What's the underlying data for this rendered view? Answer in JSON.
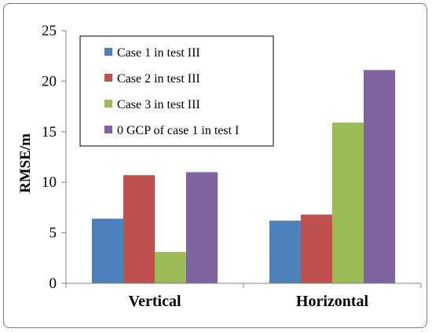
{
  "chart_data": {
    "type": "bar",
    "ylabel": "RMSE/m",
    "xlabel": "",
    "ylim": [
      0,
      25
    ],
    "yticks": [
      0,
      5,
      10,
      15,
      20,
      25
    ],
    "categories": [
      "Vertical",
      "Horizontal"
    ],
    "legend_position": "top-left",
    "grid": false,
    "series": [
      {
        "name": "Case 1 in test III",
        "color": "#4F81BD",
        "values": [
          6.4,
          6.2
        ]
      },
      {
        "name": "Case 2 in test III",
        "color": "#C0504D",
        "values": [
          10.7,
          6.8
        ]
      },
      {
        "name": "Case 3 in test III",
        "color": "#9BBB59",
        "values": [
          3.1,
          15.9
        ]
      },
      {
        "name": "0 GCP of case 1 in test I",
        "color": "#8064A2",
        "values": [
          11.0,
          21.1
        ]
      }
    ]
  }
}
